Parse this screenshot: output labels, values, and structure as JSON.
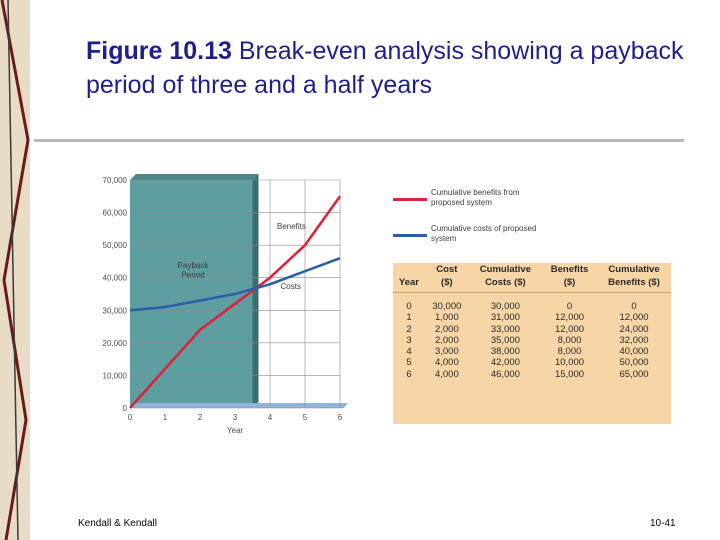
{
  "slide": {
    "title_bold": "Figure 10.13",
    "title_rest": " Break-even analysis showing a payback period of three and a half years",
    "footer_left": "Kendall & Kendall",
    "footer_right": "10-41"
  },
  "colors": {
    "title": "#1f1f8a",
    "benefits_line": "#d7263d",
    "costs_line": "#2b5fa6",
    "payback_panel": "#5f9ea0",
    "table_bg": "#f5d5a5"
  },
  "chart_data": {
    "type": "line",
    "xlabel": "Year",
    "ylabel": "",
    "x": [
      0,
      1,
      2,
      3,
      4,
      5,
      6
    ],
    "xlim": [
      0,
      6
    ],
    "ylim": [
      0,
      70000
    ],
    "y_ticks": [
      "0",
      "10,000",
      "20,000",
      "30,000",
      "40,000",
      "50,000",
      "60,000",
      "70,000"
    ],
    "x_ticks": [
      "0",
      "1",
      "2",
      "3",
      "4",
      "5",
      "6"
    ],
    "series": [
      {
        "name": "Benefits",
        "values": [
          0,
          12000,
          24000,
          32000,
          40000,
          50000,
          65000
        ]
      },
      {
        "name": "Costs",
        "values": [
          30000,
          31000,
          33000,
          35000,
          38000,
          42000,
          46000
        ]
      }
    ],
    "payback_period_end": 3.5,
    "annotations": {
      "payback": "Payback Period",
      "benefits": "Benefits",
      "costs": "Costs"
    }
  },
  "legend": {
    "benefits": "Cumulative benefits from proposed system",
    "costs": "Cumulative costs of proposed system"
  },
  "table": {
    "headers": [
      {
        "line1": "",
        "line2": "Year"
      },
      {
        "line1": "Cost",
        "line2": "($)"
      },
      {
        "line1": "Cumulative",
        "line2": "Costs ($)"
      },
      {
        "line1": "Benefits",
        "line2": "($)"
      },
      {
        "line1": "Cumulative",
        "line2": "Benefits ($)"
      }
    ],
    "rows": [
      [
        "0",
        "30,000",
        "30,000",
        "0",
        "0"
      ],
      [
        "1",
        "1,000",
        "31,000",
        "12,000",
        "12,000"
      ],
      [
        "2",
        "2,000",
        "33,000",
        "12,000",
        "24,000"
      ],
      [
        "3",
        "2,000",
        "35,000",
        "8,000",
        "32,000"
      ],
      [
        "4",
        "3,000",
        "38,000",
        "8,000",
        "40,000"
      ],
      [
        "5",
        "4,000",
        "42,000",
        "10,000",
        "50,000"
      ],
      [
        "6",
        "4,000",
        "46,000",
        "15,000",
        "65,000"
      ]
    ]
  }
}
